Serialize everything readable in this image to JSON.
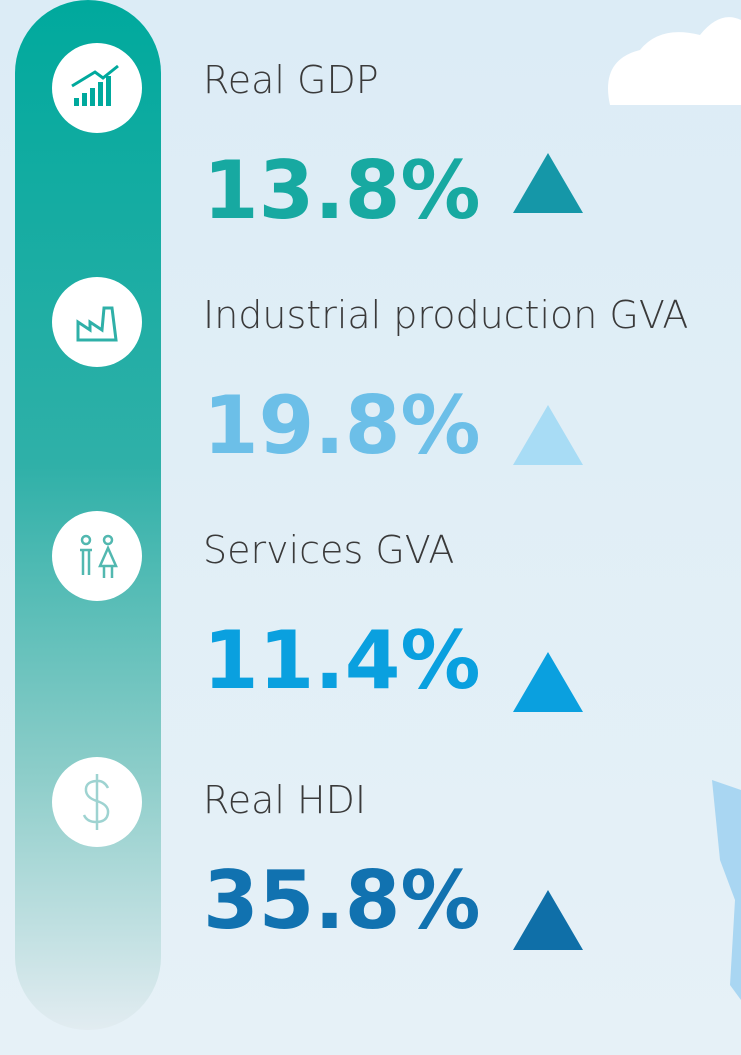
{
  "items": [
    {
      "label": "Real GDP",
      "value": "13.8%"
    },
    {
      "label": "Industrial production GVA",
      "value": "19.8%"
    },
    {
      "label": "Services GVA",
      "value": "11.4%"
    },
    {
      "label": "Real HDI",
      "value": "35.8%"
    }
  ]
}
